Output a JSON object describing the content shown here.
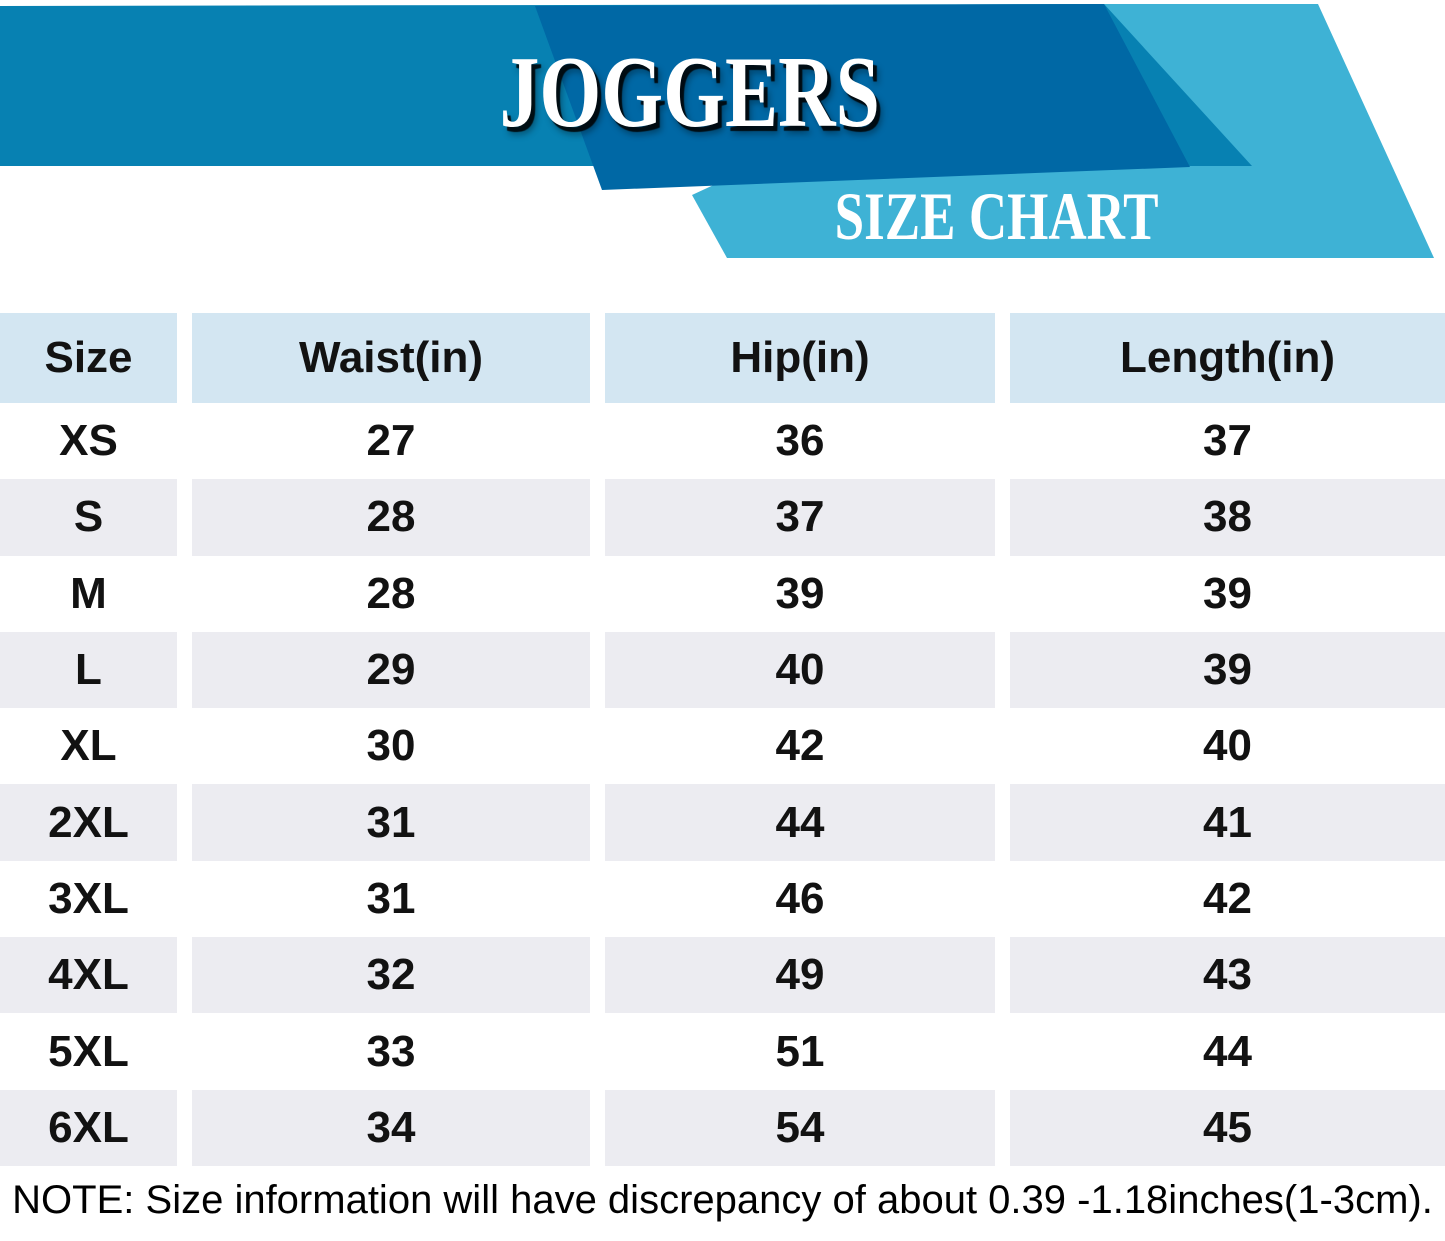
{
  "banner": {
    "title": "JOGGERS",
    "subtitle": "SIZE CHART"
  },
  "colors": {
    "band": "#0781b2",
    "dark": "#0068a5",
    "light": "#3eb2d5",
    "header_bg": "#d3e6f2",
    "stripe_bg": "#ececf1"
  },
  "table": {
    "columns": [
      "Size",
      "Waist(in)",
      "Hip(in)",
      "Length(in)"
    ],
    "rows": [
      {
        "size": "XS",
        "waist": "27",
        "hip": "36",
        "length": "37"
      },
      {
        "size": "S",
        "waist": "28",
        "hip": "37",
        "length": "38"
      },
      {
        "size": "M",
        "waist": "28",
        "hip": "39",
        "length": "39"
      },
      {
        "size": "L",
        "waist": "29",
        "hip": "40",
        "length": "39"
      },
      {
        "size": "XL",
        "waist": "30",
        "hip": "42",
        "length": "40"
      },
      {
        "size": "2XL",
        "waist": "31",
        "hip": "44",
        "length": "41"
      },
      {
        "size": "3XL",
        "waist": "31",
        "hip": "46",
        "length": "42"
      },
      {
        "size": "4XL",
        "waist": "32",
        "hip": "49",
        "length": "43"
      },
      {
        "size": "5XL",
        "waist": "33",
        "hip": "51",
        "length": "44"
      },
      {
        "size": "6XL",
        "waist": "34",
        "hip": "54",
        "length": "45"
      }
    ]
  },
  "note": "NOTE: Size information will have discrepancy of about 0.39 -1.18inches(1-3cm)."
}
